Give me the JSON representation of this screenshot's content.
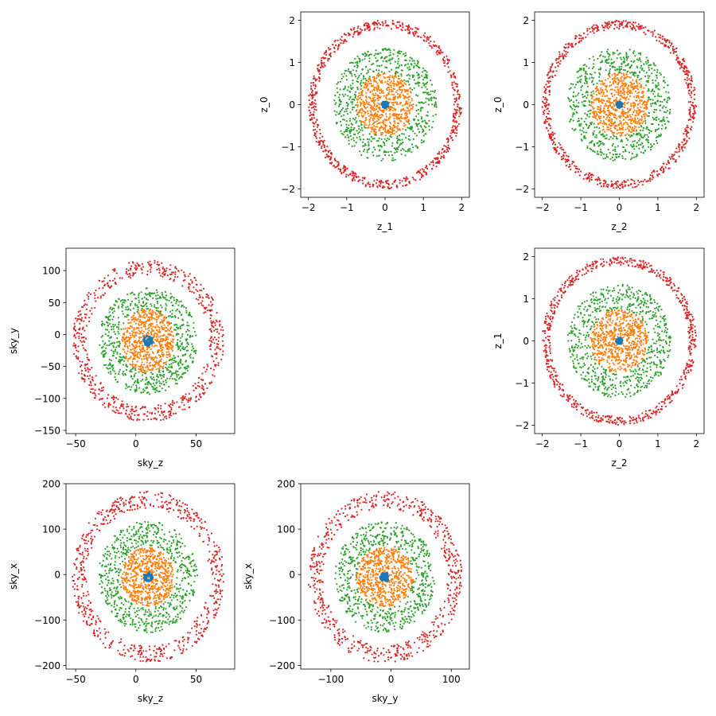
{
  "chart_data": [
    {
      "type": "scatter",
      "panel": "z_1 vs z_0",
      "xlabel": "z_1",
      "ylabel": "z_0",
      "xlim": [
        -2.2,
        2.2
      ],
      "ylim": [
        -2.2,
        2.2
      ],
      "xticks": [
        -2,
        -1,
        0,
        1,
        2
      ],
      "yticks": [
        -2,
        -1,
        0,
        1,
        2
      ],
      "grid": false,
      "series": [
        {
          "shape": "ring",
          "center": [
            0,
            0
          ],
          "r_range": [
            1.8,
            2.0
          ],
          "count": 700,
          "color": "#d62728"
        },
        {
          "shape": "ring",
          "center": [
            0,
            0
          ],
          "r_range": [
            0.75,
            1.35
          ],
          "count": 650,
          "color": "#2ca02c"
        },
        {
          "shape": "disk",
          "center": [
            0,
            0
          ],
          "r_range": [
            0,
            0.75
          ],
          "count": 650,
          "color": "#ff7f0e"
        },
        {
          "shape": "disk",
          "center": [
            0,
            0
          ],
          "r_range": [
            0,
            0.08
          ],
          "count": 40,
          "color": "#1f77b4"
        }
      ]
    },
    {
      "type": "scatter",
      "panel": "z_2 vs z_0",
      "xlabel": "z_2",
      "ylabel": "z_0",
      "xlim": [
        -2.2,
        2.2
      ],
      "ylim": [
        -2.2,
        2.2
      ],
      "xticks": [
        -2,
        -1,
        0,
        1,
        2
      ],
      "yticks": [
        -2,
        -1,
        0,
        1,
        2
      ],
      "grid": false,
      "series": [
        {
          "shape": "ring",
          "center": [
            0,
            0
          ],
          "r_range": [
            1.8,
            2.0
          ],
          "count": 700,
          "color": "#d62728"
        },
        {
          "shape": "ring",
          "center": [
            0,
            0
          ],
          "r_range": [
            0.75,
            1.35
          ],
          "count": 650,
          "color": "#2ca02c"
        },
        {
          "shape": "disk",
          "center": [
            0,
            0
          ],
          "r_range": [
            0,
            0.75
          ],
          "count": 650,
          "color": "#ff7f0e"
        },
        {
          "shape": "disk",
          "center": [
            0,
            0
          ],
          "r_range": [
            0,
            0.08
          ],
          "count": 40,
          "color": "#1f77b4"
        }
      ]
    },
    {
      "type": "scatter",
      "panel": "sky_z vs sky_y",
      "xlabel": "sky_z",
      "ylabel": "sky_y",
      "xlim": [
        -58,
        82
      ],
      "ylim": [
        -155,
        135
      ],
      "xticks": [
        -50,
        0,
        50
      ],
      "yticks": [
        -150,
        -100,
        -50,
        0,
        50,
        100
      ],
      "grid": false,
      "series": [
        {
          "shape": "ring",
          "center": [
            10,
            -10
          ],
          "scale": [
            60,
            120
          ],
          "r_range": [
            0.85,
            1.05
          ],
          "count": 650,
          "color": "#d62728"
        },
        {
          "shape": "ring",
          "center": [
            10,
            -10
          ],
          "scale": [
            42,
            85
          ],
          "r_range": [
            0.55,
            0.98
          ],
          "count": 650,
          "color": "#2ca02c"
        },
        {
          "shape": "disk",
          "center": [
            10,
            -10
          ],
          "scale": [
            22,
            50
          ],
          "r_range": [
            0,
            1
          ],
          "count": 650,
          "color": "#ff7f0e"
        },
        {
          "shape": "disk",
          "center": [
            10,
            -10
          ],
          "scale": [
            4,
            8
          ],
          "r_range": [
            0,
            1
          ],
          "count": 40,
          "color": "#1f77b4"
        }
      ]
    },
    {
      "type": "scatter",
      "panel": "z_2 vs z_1",
      "xlabel": "z_2",
      "ylabel": "z_1",
      "xlim": [
        -2.2,
        2.2
      ],
      "ylim": [
        -2.2,
        2.2
      ],
      "xticks": [
        -2,
        -1,
        0,
        1,
        2
      ],
      "yticks": [
        -2,
        -1,
        0,
        1,
        2
      ],
      "grid": false,
      "series": [
        {
          "shape": "ring",
          "center": [
            0,
            0
          ],
          "r_range": [
            1.8,
            2.0
          ],
          "count": 700,
          "color": "#d62728"
        },
        {
          "shape": "ring",
          "center": [
            0,
            0
          ],
          "r_range": [
            0.75,
            1.35
          ],
          "count": 650,
          "color": "#2ca02c"
        },
        {
          "shape": "disk",
          "center": [
            0,
            0
          ],
          "r_range": [
            0,
            0.75
          ],
          "count": 650,
          "color": "#ff7f0e"
        },
        {
          "shape": "disk",
          "center": [
            0,
            0
          ],
          "r_range": [
            0,
            0.08
          ],
          "count": 40,
          "color": "#1f77b4"
        }
      ]
    },
    {
      "type": "scatter",
      "panel": "sky_z vs sky_x",
      "xlabel": "sky_z",
      "ylabel": "sky_x",
      "xlim": [
        -58,
        82
      ],
      "ylim": [
        -208,
        200
      ],
      "xticks": [
        -50,
        0,
        50
      ],
      "yticks": [
        -200,
        -100,
        0,
        100,
        200
      ],
      "grid": false,
      "series": [
        {
          "shape": "ring",
          "center": [
            10,
            -5
          ],
          "scale": [
            62,
            185
          ],
          "r_range": [
            0.82,
            1.02
          ],
          "count": 650,
          "color": "#d62728"
        },
        {
          "shape": "ring",
          "center": [
            10,
            -5
          ],
          "scale": [
            42,
            125
          ],
          "r_range": [
            0.55,
            0.98
          ],
          "count": 650,
          "color": "#2ca02c"
        },
        {
          "shape": "disk",
          "center": [
            10,
            -5
          ],
          "scale": [
            22,
            65
          ],
          "r_range": [
            0,
            1
          ],
          "count": 650,
          "color": "#ff7f0e"
        },
        {
          "shape": "disk",
          "center": [
            10,
            -5
          ],
          "scale": [
            4,
            10
          ],
          "r_range": [
            0,
            1
          ],
          "count": 40,
          "color": "#1f77b4"
        }
      ]
    },
    {
      "type": "scatter",
      "panel": "sky_y vs sky_x",
      "xlabel": "sky_y",
      "ylabel": "sky_x",
      "xlim": [
        -150,
        130
      ],
      "ylim": [
        -208,
        200
      ],
      "xticks": [
        -100,
        0,
        100
      ],
      "yticks": [
        -200,
        -100,
        0,
        100,
        200
      ],
      "grid": false,
      "series": [
        {
          "shape": "ring",
          "center": [
            -10,
            -5
          ],
          "scale": [
            125,
            185
          ],
          "r_range": [
            0.82,
            1.02
          ],
          "count": 650,
          "color": "#d62728"
        },
        {
          "shape": "ring",
          "center": [
            -10,
            -5
          ],
          "scale": [
            85,
            125
          ],
          "r_range": [
            0.55,
            0.98
          ],
          "count": 650,
          "color": "#2ca02c"
        },
        {
          "shape": "disk",
          "center": [
            -10,
            -5
          ],
          "scale": [
            48,
            65
          ],
          "r_range": [
            0,
            1
          ],
          "count": 650,
          "color": "#ff7f0e"
        },
        {
          "shape": "disk",
          "center": [
            -10,
            -5
          ],
          "scale": [
            8,
            10
          ],
          "r_range": [
            0,
            1
          ],
          "count": 40,
          "color": "#1f77b4"
        }
      ]
    }
  ]
}
